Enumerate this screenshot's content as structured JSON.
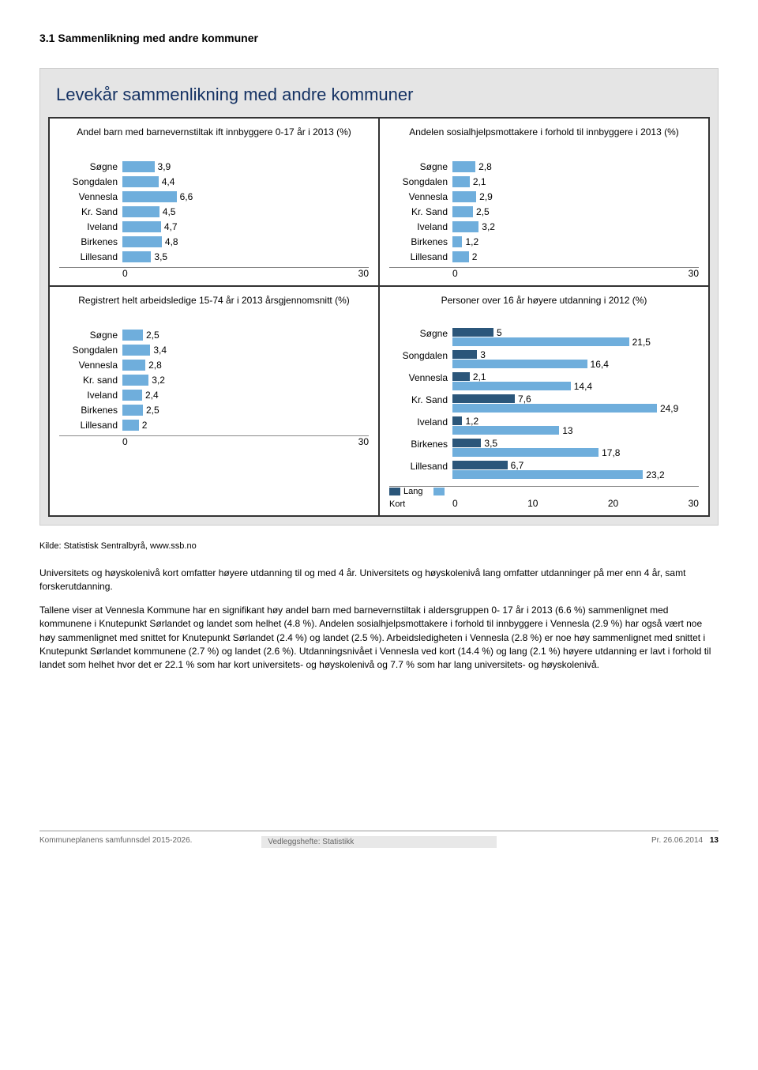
{
  "heading": "3.1   Sammenlikning med andre kommuner",
  "charts_box_title": "Levekår sammenlikning med andre kommuner",
  "panels": {
    "p1": {
      "title": "Andel barn med barnevernstiltak ift innbyggere  0-17 år i 2013 (%)",
      "categories": [
        "Søgne",
        "Songdalen",
        "Vennesla",
        "Kr. Sand",
        "Iveland",
        "Birkenes",
        "Lillesand"
      ],
      "values": [
        3.9,
        4.4,
        6.6,
        4.5,
        4.7,
        4.8,
        3.5
      ],
      "bar_color": "#6faedc",
      "xmax": 30,
      "xticks": [
        "0",
        "30"
      ]
    },
    "p2": {
      "title": "Andelen  sosialhjelpsmottakere  i  forhold  til innbyggere i 2013 (%)",
      "categories": [
        "Søgne",
        "Songdalen",
        "Vennesla",
        "Kr. Sand",
        "Iveland",
        "Birkenes",
        "Lillesand"
      ],
      "values": [
        2.8,
        2.1,
        2.9,
        2.5,
        3.2,
        1.2,
        2
      ],
      "bar_color": "#6faedc",
      "xmax": 30,
      "xticks": [
        "0",
        "30"
      ]
    },
    "p3": {
      "title": "Registrert helt arbeidsledige 15-74 år i 2013 årsgjennomsnitt (%)",
      "categories": [
        "Søgne",
        "Songdalen",
        "Vennesla",
        "Kr. sand",
        "Iveland",
        "Birkenes",
        "Lillesand"
      ],
      "values": [
        2.5,
        3.4,
        2.8,
        3.2,
        2.4,
        2.5,
        2
      ],
      "bar_color": "#6faedc",
      "xmax": 30,
      "xticks": [
        "0",
        "30"
      ]
    },
    "p4": {
      "title": "Personer over 16 år høyere utdanning i 2012 (%)",
      "categories": [
        "Søgne",
        "Songdalen",
        "Vennesla",
        "Kr. Sand",
        "Iveland",
        "Birkenes",
        "Lillesand"
      ],
      "series1_label": "Lang",
      "series2_label": "Kort",
      "series1_color": "#2b567a",
      "series2_color": "#6faedc",
      "s1": [
        5,
        3,
        2.1,
        7.6,
        1.2,
        3.5,
        6.7
      ],
      "s2": [
        21.5,
        16.4,
        14.4,
        24.9,
        13,
        17.8,
        23.2
      ],
      "xmax": 30,
      "xticks": [
        "0",
        "10",
        "20",
        "30"
      ]
    }
  },
  "source_text": "Kilde: Statistisk Sentralbyrå, www.ssb.no",
  "body_text": "Universitets og høyskolenivå kort omfatter høyere utdanning til og med 4 år. Universitets og høyskolenivå lang omfatter utdanninger på mer enn 4 år, samt forskerutdanning.\n\nTallene viser at Vennesla Kommune har en signifikant høy andel barn med barnevernstiltak i aldersgruppen 0- 17 år i 2013 (6.6 %) sammenlignet med kommunene i Knutepunkt Sørlandet og landet som helhet (4.8 %). Andelen sosialhjelpsmottakere i forhold til innbyggere i Vennesla (2.9 %) har også vært noe høy sammenlignet med snittet for Knutepunkt Sørlandet (2.4 %) og landet (2.5 %). Arbeidsledigheten i Vennesla (2.8 %) er noe høy sammenlignet med snittet i Knutepunkt Sørlandet kommunene (2.7 %) og landet (2.6 %). Utdanningsnivået i Vennesla ved kort (14.4 %) og lang (2.1 %) høyere utdanning er lavt i forhold til landet som helhet hvor det er 22.1 % som har kort universitets- og høyskolenivå og 7.7 % som har lang universitets- og høyskolenivå.",
  "footer": {
    "c1": "Kommuneplanens samfunnsdel 2015-2026.",
    "c2": "Vedleggshefte: Statistikk",
    "c3": "Pr. 26.06.2014",
    "page": "13"
  }
}
